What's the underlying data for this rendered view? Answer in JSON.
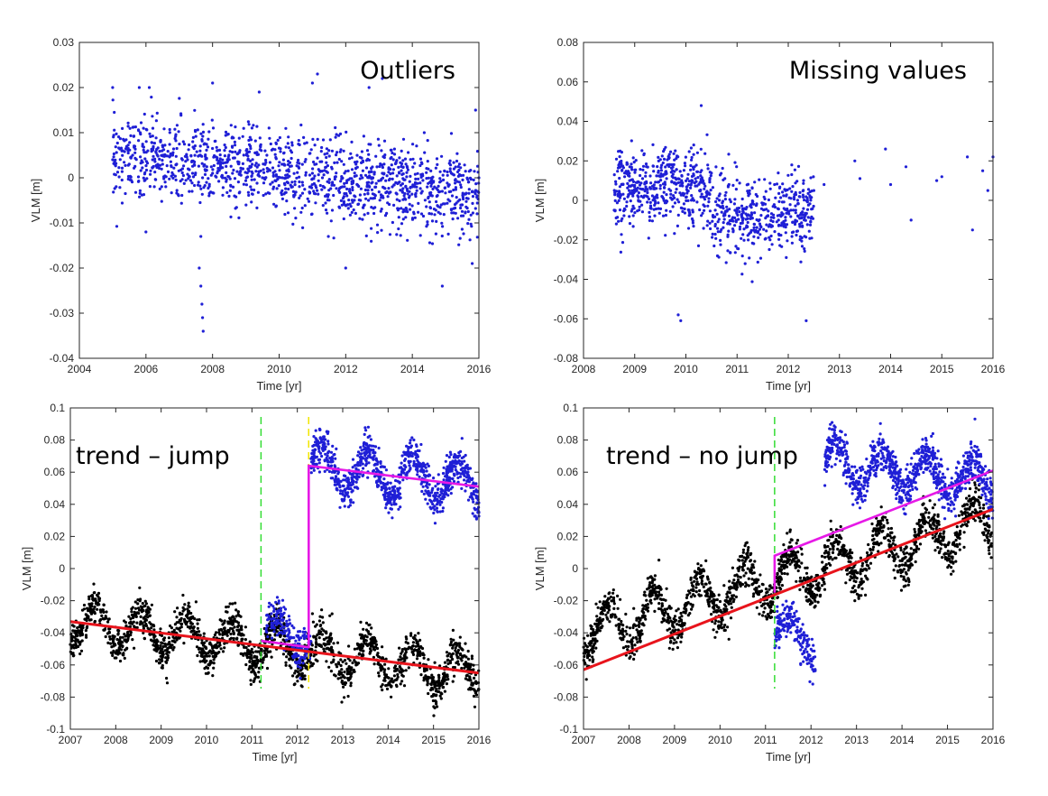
{
  "chart_data": [
    {
      "type": "scatter",
      "title": "Outliers",
      "xlabel": "Time [yr]",
      "ylabel": "VLM [m]",
      "xlim": [
        2004,
        2016
      ],
      "ylim": [
        -0.04,
        0.03
      ],
      "xticks": [
        2004,
        2006,
        2008,
        2010,
        2012,
        2014,
        2016
      ],
      "yticks": [
        -0.04,
        -0.03,
        -0.02,
        -0.01,
        0,
        0.01,
        0.02,
        0.03
      ],
      "xticklabels": [
        "2004",
        "2006",
        "2008",
        "2010",
        "2012",
        "2014",
        "2016"
      ],
      "yticklabels": [
        "-0.04",
        "-0.03",
        "-0.02",
        "-0.01",
        "0",
        "0.01",
        "0.02",
        "0.03"
      ],
      "color": "#1f1fd6",
      "series": [
        {
          "points": [
            [
              2005.0,
              0.004
            ],
            [
              2005.3,
              0.006
            ],
            [
              2005.6,
              0.005
            ],
            [
              2005.9,
              0.007
            ],
            [
              2006.2,
              0.004
            ],
            [
              2006.5,
              0.003
            ],
            [
              2006.8,
              0.005
            ],
            [
              2007.1,
              0.002
            ],
            [
              2007.4,
              0.001
            ],
            [
              2007.7,
              0.0
            ],
            [
              2008.0,
              0.001
            ],
            [
              2008.3,
              0.0
            ],
            [
              2008.6,
              0.001
            ],
            [
              2008.9,
              0.002
            ],
            [
              2009.2,
              0.001
            ],
            [
              2009.5,
              0.0
            ],
            [
              2009.8,
              -0.001
            ],
            [
              2010.1,
              0.0
            ],
            [
              2010.4,
              -0.002
            ],
            [
              2010.7,
              -0.001
            ],
            [
              2011.0,
              0.001
            ],
            [
              2011.3,
              0.0
            ],
            [
              2011.6,
              -0.001
            ],
            [
              2011.9,
              -0.002
            ],
            [
              2012.2,
              -0.001
            ],
            [
              2012.5,
              0.0
            ],
            [
              2012.8,
              -0.001
            ],
            [
              2013.1,
              0.001
            ],
            [
              2013.4,
              -0.002
            ],
            [
              2013.7,
              -0.003
            ],
            [
              2014.0,
              -0.002
            ],
            [
              2014.3,
              -0.003
            ],
            [
              2014.6,
              -0.004
            ],
            [
              2014.9,
              -0.003
            ],
            [
              2015.2,
              -0.004
            ],
            [
              2015.5,
              -0.006
            ],
            [
              2015.8,
              -0.003
            ],
            [
              2016.0,
              0.0
            ],
            [
              2005.0,
              0.02
            ],
            [
              2005.8,
              0.02
            ],
            [
              2006.1,
              0.02
            ],
            [
              2008.0,
              0.021
            ],
            [
              2009.4,
              0.019
            ],
            [
              2011.0,
              0.021
            ],
            [
              2011.15,
              0.023
            ],
            [
              2012.7,
              0.02
            ],
            [
              2013.1,
              0.022
            ],
            [
              2015.9,
              0.015
            ],
            [
              2007.6,
              -0.02
            ],
            [
              2007.65,
              -0.024
            ],
            [
              2007.68,
              -0.028
            ],
            [
              2007.7,
              -0.031
            ],
            [
              2007.72,
              -0.034
            ],
            [
              2012.0,
              -0.02
            ],
            [
              2014.9,
              -0.024
            ],
            [
              2015.8,
              -0.019
            ],
            [
              2007.65,
              -0.013
            ],
            [
              2006.0,
              -0.012
            ]
          ]
        }
      ],
      "annotation": "Outliers"
    },
    {
      "type": "scatter",
      "title": "Missing values",
      "xlabel": "Time [yr]",
      "ylabel": "VLM [m]",
      "xlim": [
        2008,
        2016
      ],
      "ylim": [
        -0.08,
        0.08
      ],
      "xticks": [
        2008,
        2009,
        2010,
        2011,
        2012,
        2013,
        2014,
        2015,
        2016
      ],
      "yticks": [
        -0.08,
        -0.06,
        -0.04,
        -0.02,
        0,
        0.02,
        0.04,
        0.06,
        0.08
      ],
      "xticklabels": [
        "2008",
        "2009",
        "2010",
        "2011",
        "2012",
        "2013",
        "2014",
        "2015",
        "2016"
      ],
      "yticklabels": [
        "-0.08",
        "-0.06",
        "-0.04",
        "-0.02",
        "0",
        "0.02",
        "0.04",
        "0.06",
        "0.08"
      ],
      "color": "#1f1fd6",
      "series": [
        {
          "points": [
            [
              2008.6,
              -0.005
            ],
            [
              2008.9,
              0.01
            ],
            [
              2009.2,
              0.009
            ],
            [
              2009.5,
              0.006
            ],
            [
              2009.8,
              0.004
            ],
            [
              2010.1,
              0.008
            ],
            [
              2010.4,
              0.002
            ],
            [
              2010.7,
              -0.006
            ],
            [
              2011.0,
              -0.004
            ],
            [
              2011.3,
              -0.009
            ],
            [
              2011.6,
              -0.008
            ],
            [
              2011.9,
              -0.012
            ],
            [
              2012.1,
              -0.005
            ],
            [
              2012.3,
              0.01
            ],
            [
              2012.5,
              0.005
            ],
            [
              2009.85,
              -0.058
            ],
            [
              2009.9,
              -0.061
            ],
            [
              2010.3,
              0.048
            ],
            [
              2012.35,
              -0.061
            ],
            [
              2012.7,
              0.008
            ],
            [
              2013.3,
              0.02
            ],
            [
              2013.4,
              0.011
            ],
            [
              2013.9,
              0.026
            ],
            [
              2014.0,
              0.008
            ],
            [
              2014.3,
              0.017
            ],
            [
              2014.4,
              -0.01
            ],
            [
              2014.9,
              0.01
            ],
            [
              2015.0,
              0.012
            ],
            [
              2015.5,
              0.022
            ],
            [
              2015.6,
              -0.015
            ],
            [
              2015.8,
              0.015
            ],
            [
              2015.9,
              0.005
            ],
            [
              2016.0,
              0.022
            ]
          ]
        }
      ],
      "annotation": "Missing values"
    },
    {
      "type": "scatter",
      "title": "trend – jump",
      "xlabel": "Time [yr]",
      "ylabel": "VLM [m]",
      "xlim": [
        2007,
        2016
      ],
      "ylim": [
        -0.1,
        0.1
      ],
      "xticks": [
        2007,
        2008,
        2009,
        2010,
        2011,
        2012,
        2013,
        2014,
        2015,
        2016
      ],
      "yticks": [
        -0.1,
        -0.08,
        -0.06,
        -0.04,
        -0.02,
        0,
        0.02,
        0.04,
        0.06,
        0.08,
        0.1
      ],
      "xticklabels": [
        "2007",
        "2008",
        "2009",
        "2010",
        "2011",
        "2012",
        "2013",
        "2014",
        "2015",
        "2016"
      ],
      "yticklabels": [
        "-0.1",
        "-0.08",
        "-0.06",
        "-0.04",
        "-0.02",
        "0",
        "0.02",
        "0.04",
        "0.06",
        "0.08",
        "0.1"
      ],
      "black_series": {
        "color": "#000000",
        "x_range": [
          2007,
          2016
        ],
        "trend": [
          [
            2007,
            -0.033
          ],
          [
            2016,
            -0.065
          ]
        ],
        "amplitude": 0.012
      },
      "blue_series": {
        "color": "#1f1fd6",
        "x_range": [
          2012.3,
          2016
        ],
        "trend": [
          [
            2012.3,
            0.064
          ],
          [
            2016,
            0.052
          ]
        ],
        "amplitude": 0.013
      },
      "blue_short": {
        "color": "#1f1fd6",
        "x_range": [
          2011.3,
          2012.3
        ],
        "trend": [
          [
            2011.3,
            -0.035
          ],
          [
            2012.3,
            -0.045
          ]
        ],
        "amplitude": 0.008
      },
      "red_line": {
        "color": "#e8141c",
        "points": [
          [
            2007,
            -0.033
          ],
          [
            2016,
            -0.065
          ]
        ]
      },
      "magenta_line": {
        "color": "#e619e6",
        "points": [
          [
            2011.2,
            -0.045
          ],
          [
            2012.25,
            -0.049
          ],
          [
            2012.25,
            0.064
          ],
          [
            2016,
            0.051
          ]
        ]
      },
      "green_dashed_x": 2011.2,
      "yellow_dashed_x": 2012.25,
      "annotation": "trend – jump"
    },
    {
      "type": "scatter",
      "title": "trend – no jump",
      "xlabel": "Time [yr]",
      "ylabel": "VLM [m]",
      "xlim": [
        2007,
        2016
      ],
      "ylim": [
        -0.1,
        0.1
      ],
      "xticks": [
        2007,
        2008,
        2009,
        2010,
        2011,
        2012,
        2013,
        2014,
        2015,
        2016
      ],
      "yticks": [
        -0.1,
        -0.08,
        -0.06,
        -0.04,
        -0.02,
        0,
        0.02,
        0.04,
        0.06,
        0.08,
        0.1
      ],
      "xticklabels": [
        "2007",
        "2008",
        "2009",
        "2010",
        "2011",
        "2012",
        "2013",
        "2014",
        "2015",
        "2016"
      ],
      "yticklabels": [
        "-0.1",
        "-0.08",
        "-0.06",
        "-0.04",
        "-0.02",
        "0",
        "0.02",
        "0.04",
        "0.06",
        "0.08",
        "0.1"
      ],
      "black_series": {
        "color": "#000000",
        "x_range": [
          2007,
          2016
        ],
        "trend": [
          [
            2007,
            -0.04
          ],
          [
            2016,
            0.03
          ]
        ],
        "amplitude": 0.014
      },
      "blue_series": {
        "color": "#1f1fd6",
        "x_range": [
          2012.3,
          2016
        ],
        "trend": [
          [
            2012.3,
            0.065
          ],
          [
            2016,
            0.055
          ]
        ],
        "amplitude": 0.012
      },
      "blue_short": {
        "color": "#1f1fd6",
        "x_range": [
          2011.2,
          2012.1
        ],
        "trend": [
          [
            2011.2,
            -0.035
          ],
          [
            2012.1,
            -0.05
          ]
        ],
        "amplitude": 0.01
      },
      "red_line": {
        "color": "#e8141c",
        "points": [
          [
            2007,
            -0.063
          ],
          [
            2016,
            0.037
          ]
        ]
      },
      "magenta_line": {
        "color": "#e619e6",
        "points": [
          [
            2011.2,
            -0.015
          ],
          [
            2011.2,
            0.008
          ],
          [
            2016,
            0.061
          ]
        ]
      },
      "green_dashed_x": 2011.2,
      "annotation": "trend – no jump"
    }
  ]
}
